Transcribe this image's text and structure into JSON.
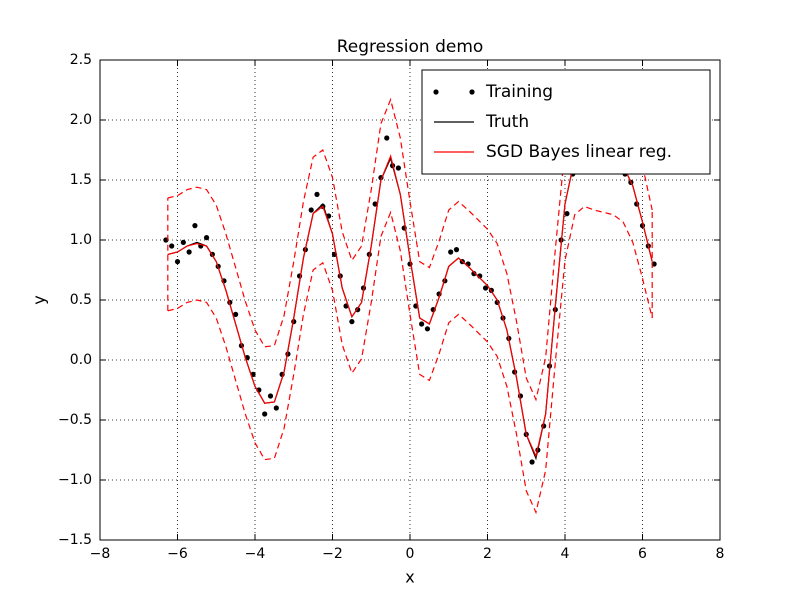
{
  "chart_data": {
    "type": "line",
    "title": "Regression demo",
    "x_label": "x",
    "y_label": "y",
    "xlim": [
      -8,
      8
    ],
    "xticks": [
      {
        "value": -8,
        "label": "−8"
      },
      {
        "value": -6,
        "label": "−6"
      },
      {
        "value": -4,
        "label": "−4"
      },
      {
        "value": -2,
        "label": "−2"
      },
      0,
      2,
      4,
      6,
      8
    ],
    "ylim": [
      -1.5,
      2.5
    ],
    "yticks": [
      {
        "value": -1.5,
        "label": "−1.5"
      },
      {
        "value": -1.0,
        "label": "−1.0"
      },
      {
        "value": -0.5,
        "label": "−0.5"
      },
      {
        "value": 0,
        "label": "0.0"
      },
      0.5,
      {
        "value": 1.0,
        "label": "1.0"
      },
      1.5,
      {
        "value": 2.0,
        "label": "2.0"
      },
      2.5
    ],
    "grid": true,
    "legend": "upper right",
    "series": [
      {
        "name": "Training",
        "style": "points",
        "color": "#000000",
        "x": [
          -6.3,
          -6.15,
          -6.0,
          -5.85,
          -5.7,
          -5.55,
          -5.4,
          -5.25,
          -5.1,
          -4.95,
          -4.8,
          -4.65,
          -4.5,
          -4.35,
          -4.2,
          -4.05,
          -3.9,
          -3.75,
          -3.6,
          -3.45,
          -3.3,
          -3.15,
          -3.0,
          -2.85,
          -2.7,
          -2.55,
          -2.4,
          -2.25,
          -2.1,
          -1.95,
          -1.8,
          -1.65,
          -1.5,
          -1.35,
          -1.2,
          -1.05,
          -0.9,
          -0.75,
          -0.6,
          -0.45,
          -0.3,
          -0.15,
          0.0,
          0.15,
          0.3,
          0.45,
          0.6,
          0.75,
          0.9,
          1.05,
          1.2,
          1.35,
          1.5,
          1.65,
          1.8,
          1.95,
          2.1,
          2.25,
          2.4,
          2.55,
          2.7,
          2.85,
          3.0,
          3.15,
          3.3,
          3.45,
          3.6,
          3.75,
          3.9,
          4.05,
          4.2,
          4.35,
          4.5,
          4.65,
          4.8,
          4.95,
          5.1,
          5.25,
          5.4,
          5.55,
          5.7,
          5.85,
          6.0,
          6.15,
          6.3
        ],
        "values": [
          1.0,
          0.95,
          0.82,
          0.98,
          0.9,
          1.12,
          0.95,
          1.02,
          0.88,
          0.78,
          0.66,
          0.48,
          0.38,
          0.12,
          0.02,
          -0.12,
          -0.25,
          -0.45,
          -0.3,
          -0.4,
          -0.12,
          0.05,
          0.32,
          0.7,
          0.92,
          1.25,
          1.38,
          1.28,
          1.2,
          0.88,
          0.7,
          0.45,
          0.32,
          0.42,
          0.6,
          0.88,
          1.3,
          1.52,
          1.85,
          1.62,
          1.6,
          1.1,
          0.8,
          0.45,
          0.3,
          0.26,
          0.42,
          0.55,
          0.66,
          0.9,
          0.92,
          0.82,
          0.8,
          0.72,
          0.7,
          0.6,
          0.58,
          0.48,
          0.35,
          0.18,
          -0.1,
          -0.3,
          -0.62,
          -0.85,
          -0.75,
          -0.55,
          -0.05,
          0.42,
          1.0,
          1.22,
          1.55,
          1.68,
          1.78,
          1.8,
          1.72,
          1.58,
          1.6,
          1.65,
          1.62,
          1.55,
          1.48,
          1.3,
          1.12,
          0.95,
          0.8
        ]
      },
      {
        "name": "Truth",
        "style": "solid",
        "color": "#000000",
        "x": [
          -6.25,
          -6.0,
          -5.75,
          -5.5,
          -5.25,
          -5.0,
          -4.75,
          -4.5,
          -4.25,
          -4.0,
          -3.75,
          -3.5,
          -3.25,
          -3.0,
          -2.75,
          -2.5,
          -2.25,
          -2.0,
          -1.75,
          -1.5,
          -1.25,
          -1.0,
          -0.75,
          -0.5,
          -0.25,
          0.0,
          0.25,
          0.5,
          0.75,
          1.0,
          1.25,
          1.5,
          1.75,
          2.0,
          2.25,
          2.5,
          2.75,
          3.0,
          3.25,
          3.5,
          3.75,
          4.0,
          4.25,
          4.5,
          4.75,
          5.0,
          5.25,
          5.5,
          5.75,
          6.0,
          6.25
        ],
        "values": [
          0.88,
          0.9,
          0.95,
          0.98,
          0.95,
          0.82,
          0.58,
          0.3,
          0.02,
          -0.22,
          -0.36,
          -0.35,
          -0.1,
          0.35,
          0.85,
          1.22,
          1.3,
          1.05,
          0.6,
          0.36,
          0.48,
          0.95,
          1.5,
          1.68,
          1.38,
          0.85,
          0.35,
          0.3,
          0.52,
          0.78,
          0.85,
          0.78,
          0.7,
          0.62,
          0.5,
          0.25,
          -0.15,
          -0.62,
          -0.82,
          -0.45,
          0.45,
          1.3,
          1.68,
          1.75,
          1.72,
          1.7,
          1.68,
          1.62,
          1.45,
          1.15,
          0.82
        ]
      },
      {
        "name": "SGD Bayes linear reg.",
        "style": "solid",
        "color": "#ff0000",
        "x": [
          -6.25,
          -6.0,
          -5.75,
          -5.5,
          -5.25,
          -5.0,
          -4.75,
          -4.5,
          -4.25,
          -4.0,
          -3.75,
          -3.5,
          -3.25,
          -3.0,
          -2.75,
          -2.5,
          -2.25,
          -2.0,
          -1.75,
          -1.5,
          -1.25,
          -1.0,
          -0.75,
          -0.5,
          -0.25,
          0.0,
          0.25,
          0.5,
          0.75,
          1.0,
          1.25,
          1.5,
          1.75,
          2.0,
          2.25,
          2.5,
          2.75,
          3.0,
          3.25,
          3.5,
          3.75,
          4.0,
          4.25,
          4.5,
          4.75,
          5.0,
          5.25,
          5.5,
          5.75,
          6.0,
          6.25
        ],
        "values": [
          0.88,
          0.9,
          0.95,
          0.97,
          0.95,
          0.82,
          0.58,
          0.3,
          0.02,
          -0.22,
          -0.36,
          -0.35,
          -0.1,
          0.35,
          0.85,
          1.22,
          1.28,
          1.05,
          0.6,
          0.36,
          0.48,
          0.95,
          1.5,
          1.7,
          1.38,
          0.85,
          0.35,
          0.3,
          0.52,
          0.78,
          0.85,
          0.78,
          0.7,
          0.62,
          0.5,
          0.25,
          -0.15,
          -0.62,
          -0.8,
          -0.45,
          0.45,
          1.3,
          1.68,
          1.75,
          1.72,
          1.7,
          1.68,
          1.62,
          1.45,
          1.15,
          0.82
        ],
        "upper": [
          1.35,
          1.37,
          1.42,
          1.44,
          1.42,
          1.29,
          1.05,
          0.77,
          0.49,
          0.25,
          0.11,
          0.12,
          0.37,
          0.82,
          1.32,
          1.69,
          1.75,
          1.52,
          1.07,
          0.83,
          0.95,
          1.42,
          1.97,
          2.17,
          1.85,
          1.32,
          0.82,
          0.77,
          0.99,
          1.25,
          1.32,
          1.25,
          1.17,
          1.09,
          0.97,
          0.72,
          0.32,
          -0.15,
          -0.33,
          0.02,
          0.92,
          1.77,
          2.15,
          2.22,
          2.19,
          2.17,
          2.15,
          2.09,
          1.92,
          1.62,
          1.25
        ],
        "lower": [
          0.41,
          0.43,
          0.48,
          0.5,
          0.48,
          0.35,
          0.11,
          -0.17,
          -0.45,
          -0.69,
          -0.83,
          -0.82,
          -0.57,
          -0.12,
          0.38,
          0.75,
          0.81,
          0.58,
          0.13,
          -0.11,
          0.01,
          0.48,
          1.03,
          1.23,
          0.91,
          0.38,
          -0.12,
          -0.17,
          0.05,
          0.31,
          0.38,
          0.31,
          0.23,
          0.15,
          0.03,
          -0.22,
          -0.62,
          -1.09,
          -1.27,
          -0.92,
          -0.02,
          0.83,
          1.21,
          1.28,
          1.25,
          1.23,
          1.21,
          1.15,
          0.98,
          0.68,
          0.35
        ]
      }
    ]
  }
}
